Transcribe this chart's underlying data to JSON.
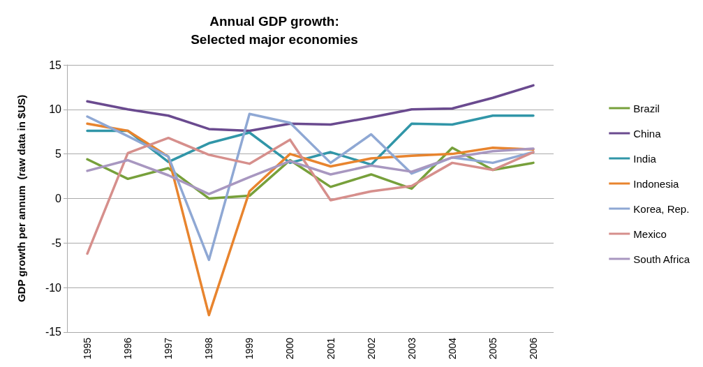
{
  "chart_data": {
    "type": "line",
    "title": "Annual GDP growth:\nSelected major economies",
    "ylabel": "GDP growth per annum  (raw data in $US)",
    "categories": [
      "1995",
      "1996",
      "1997",
      "1998",
      "1999",
      "2000",
      "2001",
      "2002",
      "2003",
      "2004",
      "2005",
      "2006"
    ],
    "series": [
      {
        "name": "Brazil",
        "color": "#77a03b",
        "values": [
          4.4,
          2.2,
          3.4,
          0.0,
          0.3,
          4.3,
          1.3,
          2.7,
          1.1,
          5.7,
          3.2,
          4.0
        ]
      },
      {
        "name": "China",
        "color": "#6a4a8f",
        "values": [
          10.9,
          10.0,
          9.3,
          7.8,
          7.6,
          8.4,
          8.3,
          9.1,
          10.0,
          10.1,
          11.3,
          12.7
        ]
      },
      {
        "name": "India",
        "color": "#3196a8",
        "values": [
          7.6,
          7.6,
          4.1,
          6.2,
          7.4,
          4.0,
          5.2,
          3.8,
          8.4,
          8.3,
          9.3,
          9.3
        ]
      },
      {
        "name": "Indonesia",
        "color": "#e8842e",
        "values": [
          8.4,
          7.6,
          4.7,
          -13.1,
          0.8,
          5.0,
          3.6,
          4.5,
          4.8,
          5.0,
          5.7,
          5.5
        ]
      },
      {
        "name": "Korea, Rep.",
        "color": "#8fa8d4",
        "values": [
          9.2,
          7.0,
          4.7,
          -6.9,
          9.5,
          8.5,
          4.0,
          7.2,
          2.8,
          4.6,
          4.0,
          5.2
        ]
      },
      {
        "name": "Mexico",
        "color": "#d68f8c",
        "values": [
          -6.2,
          5.1,
          6.8,
          4.9,
          3.9,
          6.6,
          -0.2,
          0.8,
          1.4,
          4.0,
          3.2,
          5.2
        ]
      },
      {
        "name": "South Africa",
        "color": "#a897c0",
        "values": [
          3.1,
          4.3,
          2.6,
          0.5,
          2.4,
          4.2,
          2.7,
          3.7,
          3.0,
          4.6,
          5.3,
          5.6
        ]
      }
    ],
    "ylim": [
      -15,
      15
    ],
    "yticks": [
      -15,
      -10,
      -5,
      0,
      5,
      10,
      15
    ],
    "grid": "y",
    "legend": "right",
    "marker": "none",
    "line_style": "solid"
  }
}
